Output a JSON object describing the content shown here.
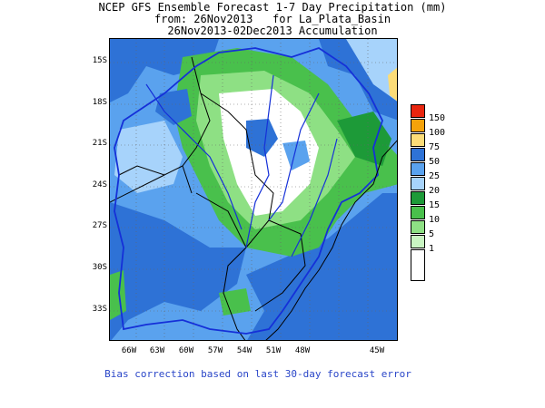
{
  "title": {
    "line1": "NCEP GFS Ensemble Forecast 1-7 Day Precipitation (mm)",
    "line2": "from: 26Nov2013   for La_Plata_Basin",
    "line3": "26Nov2013-02Dec2013 Accumulation"
  },
  "axes": {
    "lat_ticks": [
      "15S",
      "18S",
      "21S",
      "24S",
      "27S",
      "30S",
      "33S"
    ],
    "lon_ticks": [
      "66W",
      "63W",
      "60W",
      "57W",
      "54W",
      "51W",
      "48W",
      "45W"
    ]
  },
  "legend": {
    "labels": [
      "150",
      "100",
      "75",
      "50",
      "25",
      "20",
      "15",
      "10",
      "5",
      "1"
    ],
    "colors": [
      "#e8260f",
      "#f5a20a",
      "#fcdc78",
      "#2e72d6",
      "#5aa2ee",
      "#a7d3fb",
      "#1d9a38",
      "#49c04c",
      "#8ee084",
      "#c9f5c2",
      "#ffffff"
    ]
  },
  "footer": "Bias correction based on last 30-day forecast error"
}
